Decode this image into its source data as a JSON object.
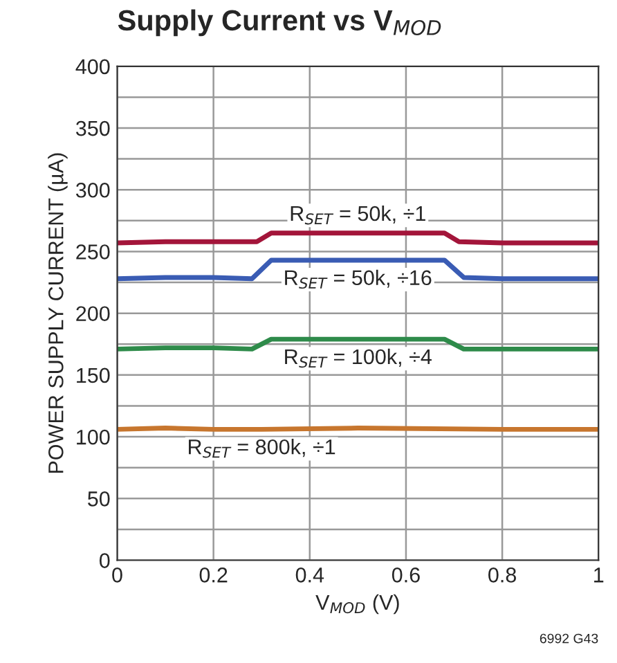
{
  "chart_data": {
    "type": "line",
    "title": "Supply Current vs V$_{MOD}$",
    "xlabel": "V$_{MOD}$ (V)",
    "ylabel": "POWER SUPPLY CURRENT (µA)",
    "annotations": [
      "6992 G43"
    ],
    "xlim": [
      0,
      1
    ],
    "xticks": [
      0,
      0.2,
      0.4,
      0.6,
      0.8,
      1
    ],
    "ylim": [
      0,
      400
    ],
    "yticks": [
      0,
      {
        "value": 25,
        "label": null
      },
      50,
      {
        "value": 75,
        "label": null
      },
      100,
      {
        "value": 125,
        "label": null
      },
      150,
      {
        "value": 175,
        "label": null
      },
      200,
      {
        "value": 225,
        "label": null
      },
      250,
      {
        "value": 275,
        "label": null
      },
      300,
      {
        "value": 325,
        "label": null
      },
      350,
      {
        "value": 375,
        "label": null
      },
      400
    ],
    "grid": true,
    "legend": false,
    "series": [
      {
        "name": "R$_{SET}$ = 50k, ÷1",
        "color": "#a3153a",
        "x": [
          0,
          0.1,
          0.2,
          0.29,
          0.32,
          0.5,
          0.68,
          0.71,
          0.8,
          1
        ],
        "values": [
          257,
          258,
          258,
          258,
          265,
          265,
          265,
          258,
          257,
          257
        ]
      },
      {
        "name": "R$_{SET}$ = 50k, ÷16",
        "color": "#3a5cb4",
        "x": [
          0,
          0.1,
          0.2,
          0.28,
          0.32,
          0.5,
          0.68,
          0.72,
          0.8,
          1
        ],
        "values": [
          228,
          229,
          229,
          228,
          243,
          243,
          243,
          229,
          228,
          228
        ]
      },
      {
        "name": "R$_{SET}$ = 100k, ÷4",
        "color": "#2e8b4a",
        "x": [
          0,
          0.1,
          0.2,
          0.28,
          0.32,
          0.5,
          0.68,
          0.72,
          0.8,
          1
        ],
        "values": [
          171,
          172,
          172,
          171,
          179,
          179,
          179,
          171,
          171,
          171
        ]
      },
      {
        "name": "R$_{SET}$ = 800k, ÷1",
        "color": "#c7762e",
        "x": [
          0,
          0.1,
          0.2,
          0.3,
          0.5,
          0.8,
          1
        ],
        "values": [
          106,
          107,
          106,
          106,
          107,
          106,
          106
        ]
      }
    ]
  }
}
